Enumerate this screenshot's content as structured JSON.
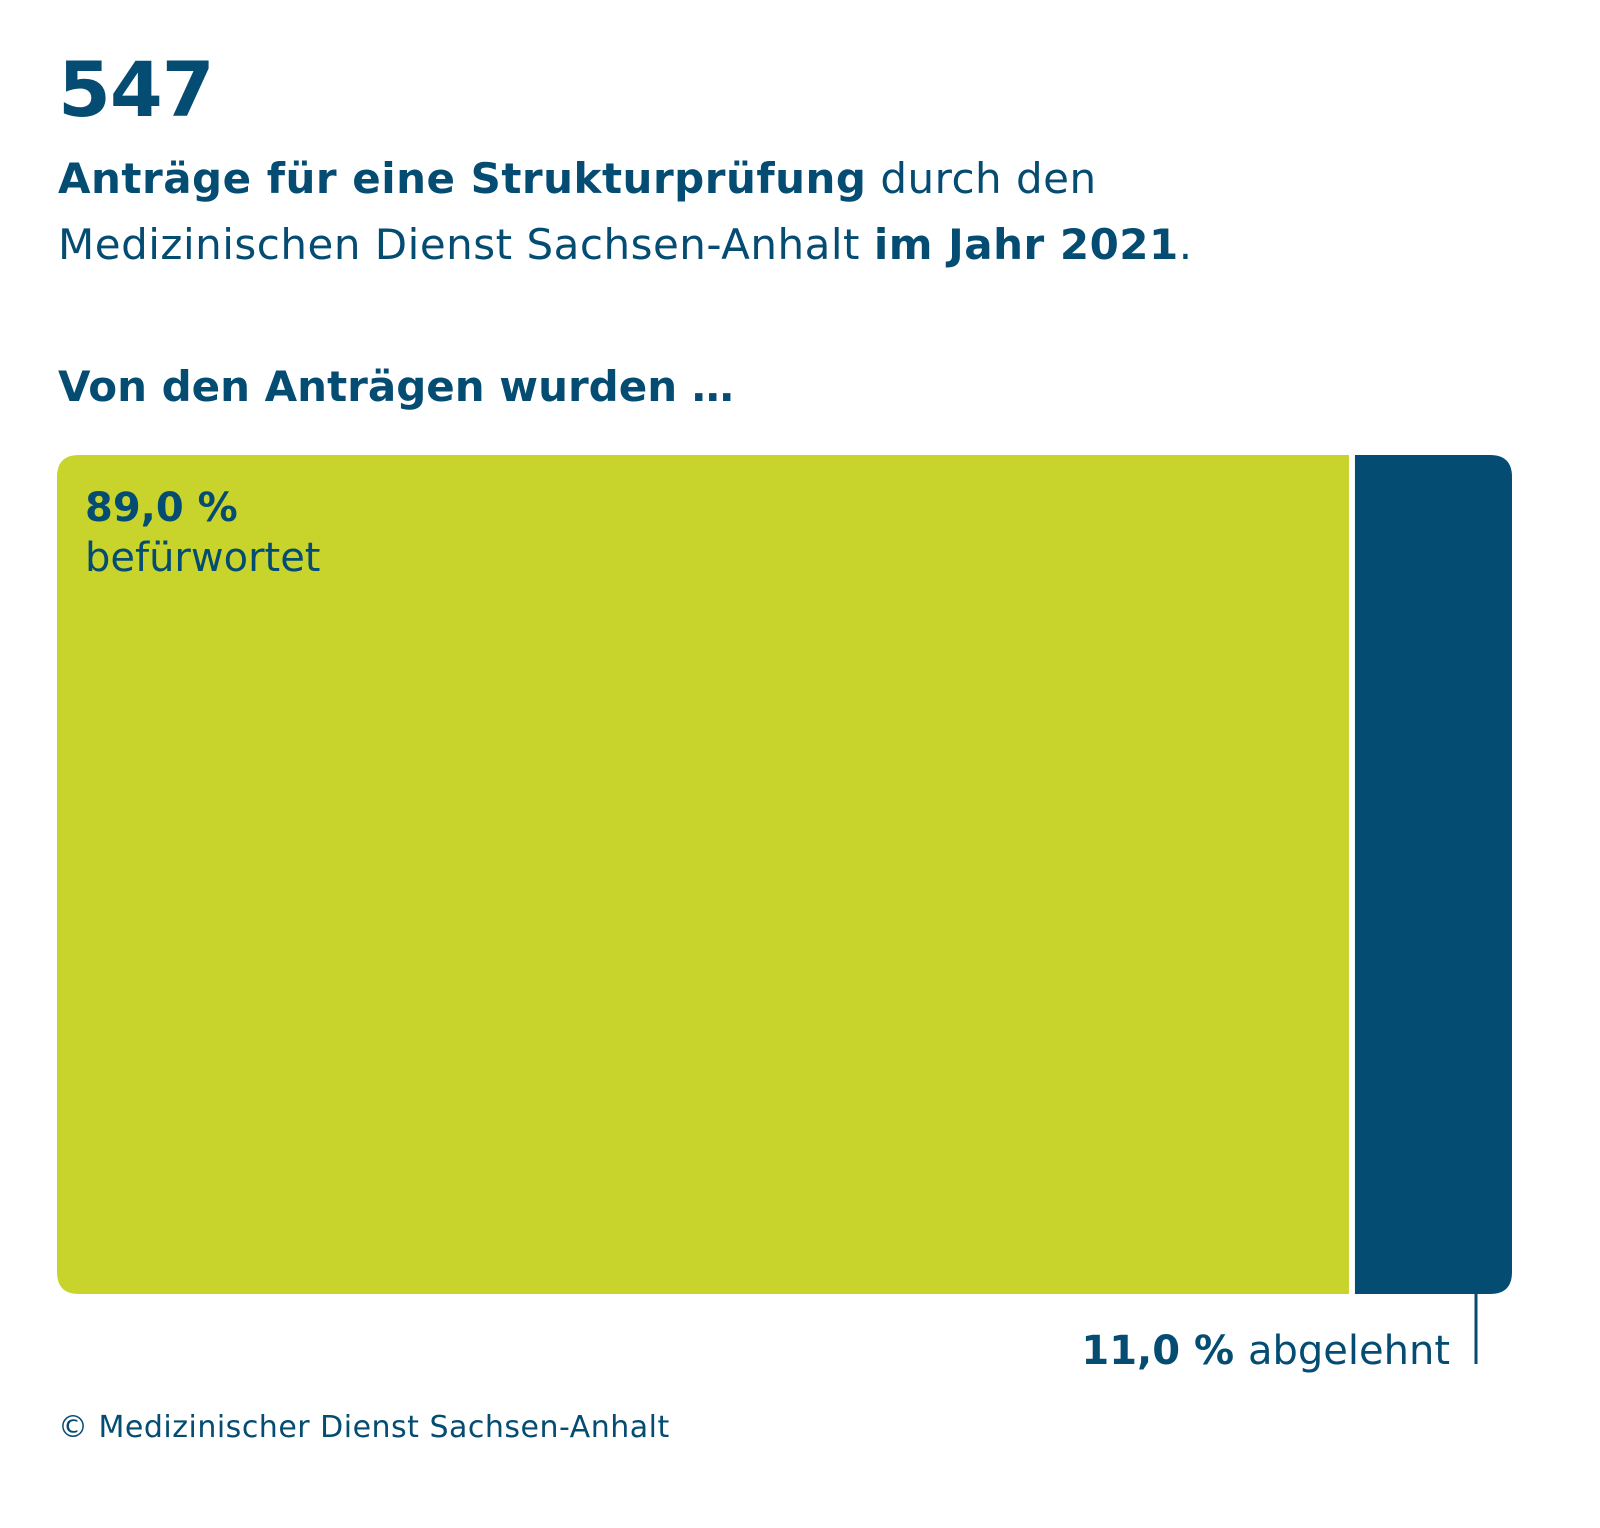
{
  "header": {
    "big_number": "547",
    "line1_bold": "Anträge für eine Strukturprüfung",
    "line1_regular": " durch den",
    "line2_regular": "Medizinischen Dienst Sachsen-Anhalt ",
    "line2_bold": "im Jahr 2021",
    "line2_end": "."
  },
  "section_heading": "Von den Anträgen wurden …",
  "footer": "© Medizinischer Dienst Sachsen-Anhalt",
  "colors": {
    "approved": "#c8d42c",
    "rejected": "#044c72",
    "text": "#044c72"
  },
  "chart_data": {
    "type": "bar",
    "orientation": "horizontal-stacked",
    "title": "Von den Anträgen wurden …",
    "total": 547,
    "categories": [
      "befürwortet",
      "abgelehnt"
    ],
    "values": [
      89.0,
      11.0
    ],
    "unit": "%",
    "series": [
      {
        "name": "befürwortet",
        "value": 89.0,
        "value_label": "89,0 %",
        "label": "befürwortet",
        "color": "#c8d42c"
      },
      {
        "name": "abgelehnt",
        "value": 11.0,
        "value_label": "11,0 %",
        "label": "abgelehnt",
        "color": "#044c72"
      }
    ],
    "xlim": [
      0,
      100
    ],
    "grid": false,
    "legend": "none"
  }
}
